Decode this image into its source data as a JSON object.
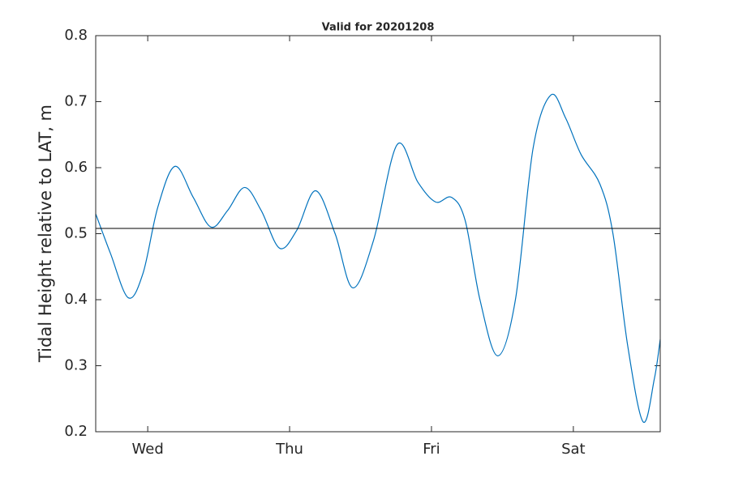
{
  "chart_data": {
    "type": "line",
    "title": "Valid for 20201208",
    "y_label": "Tidal Height relative to LAT, m",
    "x": [
      0,
      2.5,
      5.5,
      8,
      10.5,
      13.4,
      16.5,
      19.5,
      22.3,
      25.2,
      28,
      31.1,
      34,
      37.2,
      40.5,
      43.5,
      47,
      51,
      54.5,
      57.5,
      60.2,
      62.5,
      65,
      68,
      71,
      74,
      77,
      79.5,
      82.1,
      85.3,
      87.5,
      90,
      92.6,
      94.5,
      95.5
    ],
    "series": [
      {
        "color": "#0072bd",
        "values": [
          0.53,
          0.47,
          0.403,
          0.44,
          0.54,
          0.602,
          0.555,
          0.51,
          0.535,
          0.57,
          0.535,
          0.478,
          0.505,
          0.565,
          0.5,
          0.418,
          0.49,
          0.635,
          0.578,
          0.548,
          0.555,
          0.52,
          0.4,
          0.315,
          0.4,
          0.63,
          0.71,
          0.675,
          0.62,
          0.575,
          0.5,
          0.33,
          0.215,
          0.28,
          0.34
        ]
      }
    ],
    "reference_line": {
      "value": 0.508,
      "color": "#000000"
    },
    "xlim": [
      0,
      95.5
    ],
    "xticks": [
      {
        "value": 8.8,
        "label": "Wed"
      },
      {
        "value": 32.8,
        "label": "Thu"
      },
      {
        "value": 56.8,
        "label": "Fri"
      },
      {
        "value": 80.8,
        "label": "Sat"
      }
    ],
    "ylim": [
      0.2,
      0.8
    ],
    "yticks": [
      0.2,
      0.3,
      0.4,
      0.5,
      0.6,
      0.7,
      0.8
    ],
    "grid": false
  }
}
